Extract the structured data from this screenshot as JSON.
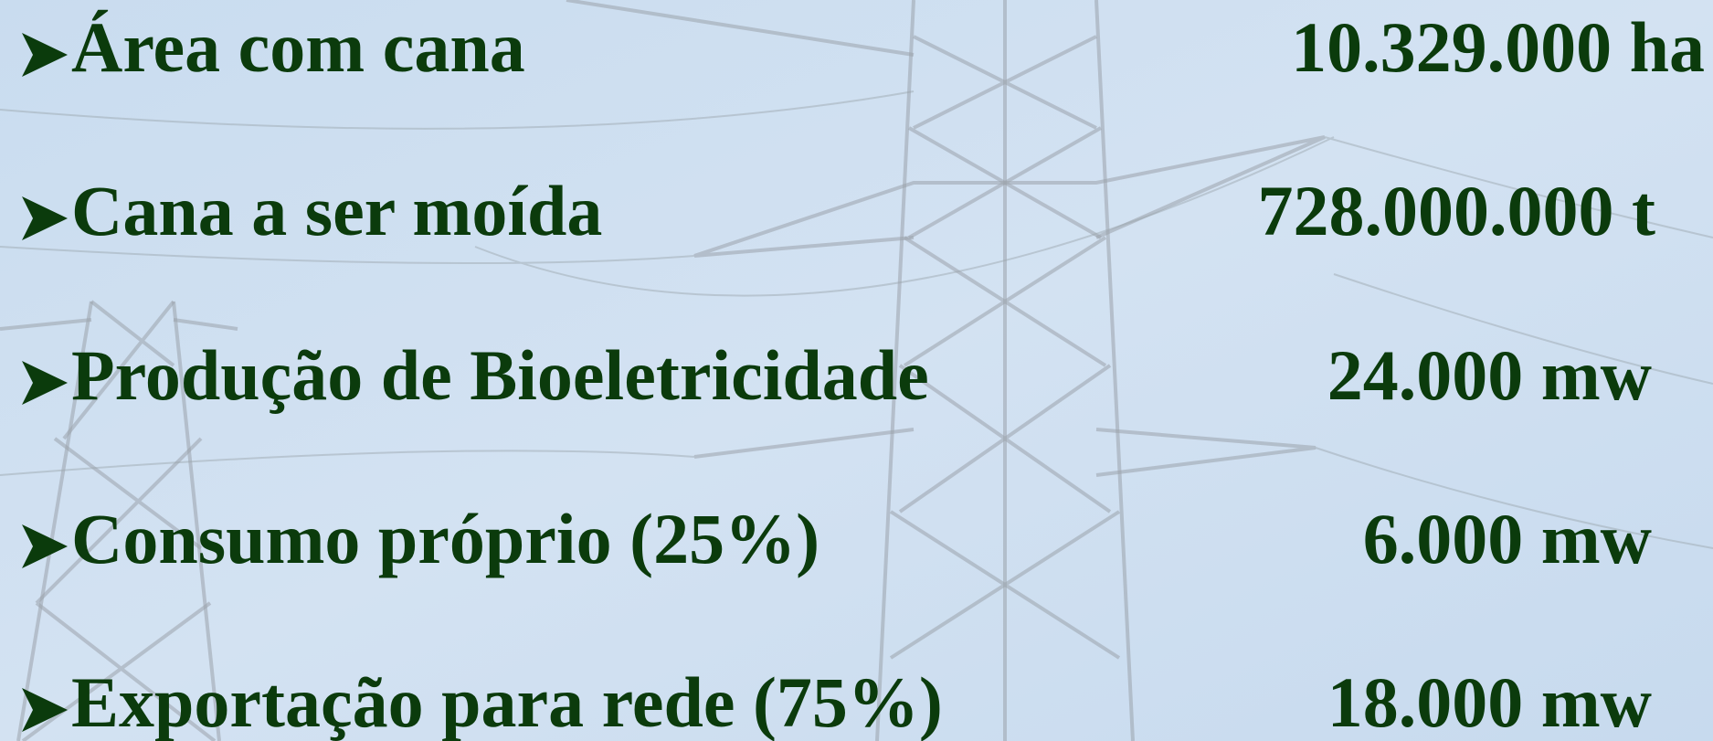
{
  "items": [
    {
      "label": "Área com cana",
      "value": "10.329.000 ha"
    },
    {
      "label": "Cana a ser moída",
      "value": "728.000.000 t"
    },
    {
      "label": "Produção de Bioeletricidade",
      "value": "24.000 mw"
    },
    {
      "label": "Consumo próprio (25%)",
      "value": "6.000 mw"
    },
    {
      "label": "Exportação para rede (75%)",
      "value": "18.000 mw"
    }
  ]
}
